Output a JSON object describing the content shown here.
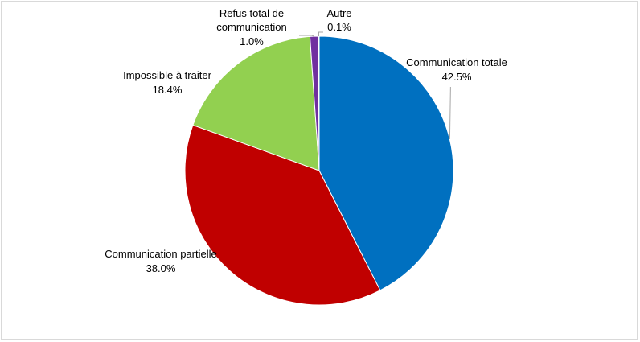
{
  "chart_data": {
    "type": "pie",
    "title": "",
    "slices": [
      {
        "name": "Communication totale",
        "value": 42.5,
        "label": "42.5%",
        "color": "#0070C0"
      },
      {
        "name": "Communication partielle",
        "value": 38.0,
        "label": "38.0%",
        "color": "#C00000"
      },
      {
        "name": "Impossible à traiter",
        "value": 18.4,
        "label": "18.4%",
        "color": "#92D050"
      },
      {
        "name_lines": [
          "Refus total de",
          "communication"
        ],
        "value": 1.0,
        "label": "1.0%",
        "color": "#7030A0"
      },
      {
        "name": "Autre",
        "value": 0.1,
        "label": "0.1%",
        "color": "#00B0F0"
      }
    ],
    "start_angle": "12 o'clock",
    "direction": "clockwise",
    "legend": "none",
    "data_labels": "outside, with leader lines"
  }
}
